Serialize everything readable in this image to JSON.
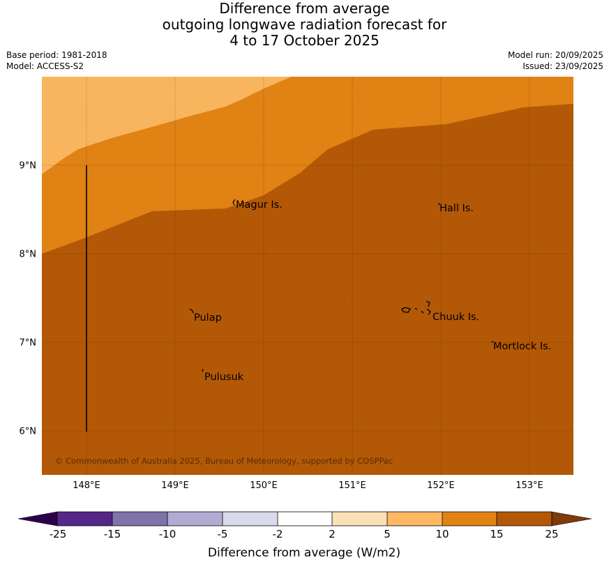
{
  "title": {
    "line1": "Difference from average",
    "line2": "outgoing longwave radiation forecast for",
    "line3": "4 to 17 October 2025"
  },
  "meta": {
    "base_period": "Base period: 1981-2018",
    "model": "Model: ACCESS-S2",
    "model_run": "Model run: 20/09/2025",
    "issued": "Issued: 23/09/2025"
  },
  "map": {
    "lat_ticks": [
      {
        "value": 9,
        "label": "9°N"
      },
      {
        "value": 8,
        "label": "8°N"
      },
      {
        "value": 7,
        "label": "7°N"
      },
      {
        "value": 6,
        "label": "6°N"
      }
    ],
    "lon_ticks": [
      {
        "value": 148,
        "label": "148°E"
      },
      {
        "value": 149,
        "label": "149°E"
      },
      {
        "value": 150,
        "label": "150°E"
      },
      {
        "value": 151,
        "label": "151°E"
      },
      {
        "value": 152,
        "label": "152°E"
      },
      {
        "value": 153,
        "label": "153°E"
      }
    ],
    "places": [
      {
        "name": "Magur Is."
      },
      {
        "name": "Hall Is."
      },
      {
        "name": "Pulap"
      },
      {
        "name": "Chuuk Is."
      },
      {
        "name": "Mortlock Is."
      },
      {
        "name": "Pulusuk"
      }
    ],
    "copyright": "© Commonwealth of Australia 2025, Bureau of Meteorology, supported by COSPPac",
    "colors": {
      "band_5_10": "#f8b55e",
      "band_10_15": "#e08214",
      "band_15_25": "#b35806"
    }
  },
  "colorbar": {
    "label": "Difference from average (W/m2)",
    "ticks": [
      "-25",
      "-15",
      "-10",
      "-5",
      "-2",
      "2",
      "5",
      "10",
      "15",
      "25"
    ],
    "colors": [
      "#2d004b",
      "#542788",
      "#8073ac",
      "#b2abd2",
      "#d8daeb",
      "#ffffff",
      "#fee0b6",
      "#fdb863",
      "#e08214",
      "#b35806",
      "#7f3b08"
    ]
  }
}
